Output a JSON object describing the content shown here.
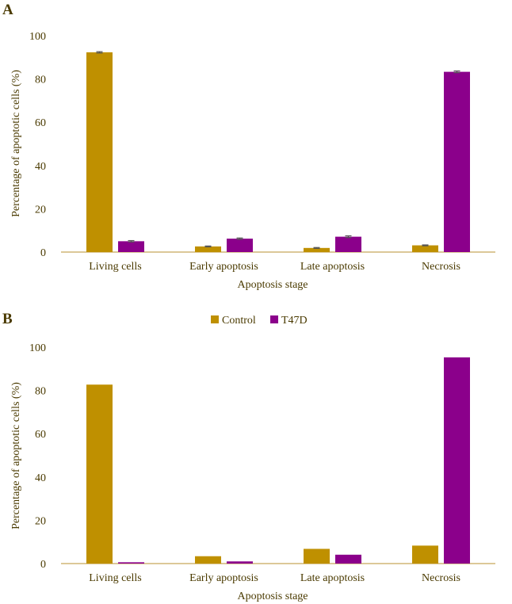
{
  "colors": {
    "control": "#BF9000",
    "t47d": "#8B008B",
    "axis": "#C8A85A",
    "text": "#4a3a00",
    "errorbar": "#555555"
  },
  "legend": {
    "placement": "top-center",
    "items": [
      "Control",
      "T47D"
    ]
  },
  "chart_data": [
    {
      "panel": "A",
      "type": "bar",
      "categories": [
        "Living cells",
        "Early apoptosis",
        "Late apoptosis",
        "Necrosis"
      ],
      "series": [
        {
          "name": "Control",
          "values": [
            92.3,
            2.6,
            1.9,
            3.1
          ],
          "errors": [
            0.3,
            0.2,
            0.2,
            0.2
          ]
        },
        {
          "name": "T47D",
          "values": [
            5.0,
            6.2,
            7.1,
            83.3
          ],
          "errors": [
            0.3,
            0.3,
            0.4,
            0.4
          ]
        }
      ],
      "xlabel": "Apoptosis stage",
      "ylabel": "Percentage of apoptotic cells (%)",
      "ylim": [
        0,
        100
      ],
      "yticks": [
        "0",
        "20",
        "40",
        "60",
        "80",
        "100"
      ],
      "grid": false
    },
    {
      "panel": "B",
      "type": "bar",
      "categories": [
        "Living cells",
        "Early apoptosis",
        "Late apoptosis",
        "Necrosis"
      ],
      "series": [
        {
          "name": "Control",
          "values": [
            82.7,
            3.4,
            6.8,
            8.3
          ]
        },
        {
          "name": "T47D",
          "values": [
            0.6,
            1.0,
            4.1,
            95.3
          ]
        }
      ],
      "xlabel": "Apoptosis stage",
      "ylabel": "Percentage of apoptotic cells (%)",
      "ylim": [
        0,
        100
      ],
      "yticks": [
        "0",
        "20",
        "40",
        "60",
        "80",
        "100"
      ],
      "grid": false
    }
  ]
}
